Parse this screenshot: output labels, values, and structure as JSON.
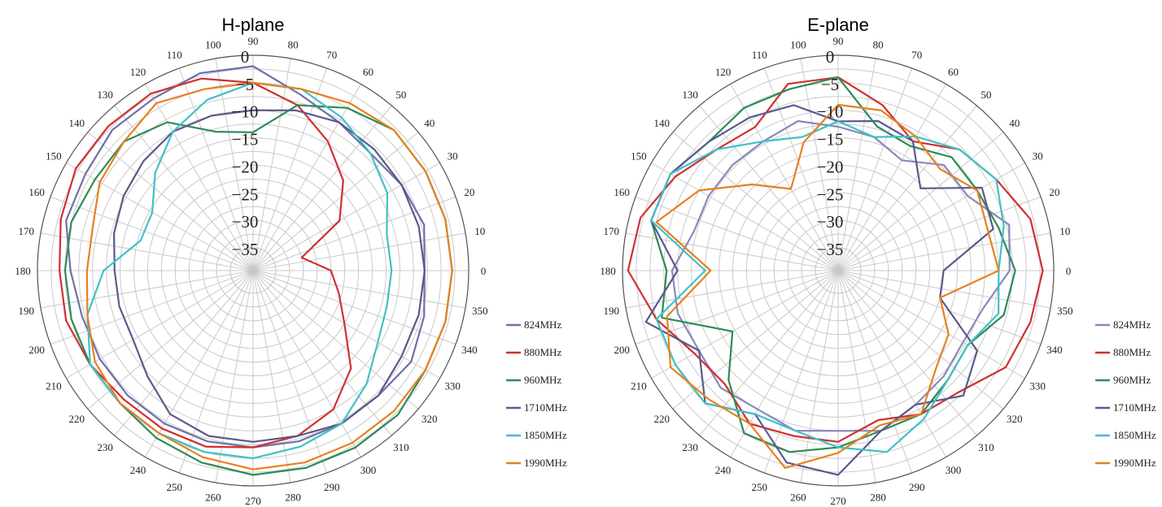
{
  "chart_data": [
    {
      "type": "polar",
      "title": "H-plane",
      "r_ticks": [
        0,
        -5,
        -10,
        -15,
        -20,
        -25,
        -30,
        -35
      ],
      "r_range": [
        -35,
        0
      ],
      "angle_ticks": [
        "0",
        "10",
        "20",
        "30",
        "40",
        "50",
        "60",
        "70",
        "80",
        "90",
        "100",
        "110",
        "120",
        "130",
        "140",
        "150",
        "160",
        "170",
        "180",
        "190",
        "200",
        "210",
        "220",
        "230",
        "240",
        "250",
        "260",
        "270",
        "280",
        "290",
        "300",
        "310",
        "320",
        "330",
        "340",
        "350"
      ],
      "legend_position": "right",
      "angles": [
        0,
        15,
        30,
        45,
        60,
        75,
        90,
        105,
        120,
        135,
        150,
        165,
        180,
        195,
        210,
        225,
        240,
        255,
        270,
        285,
        300,
        315,
        330,
        345
      ],
      "series": [
        {
          "name": "824MHz",
          "color": "#7070a8",
          "values": [
            -8,
            -7,
            -8,
            -9,
            -8,
            -6,
            -2,
            -2,
            -3,
            -3,
            -4,
            -4,
            -6,
            -7,
            -7,
            -7,
            -7,
            -7,
            -7,
            -7,
            -7,
            -7,
            -6,
            -7
          ]
        },
        {
          "name": "880MHz",
          "color": "#d03030",
          "values": [
            -25,
            -30,
            -21,
            -16,
            -12,
            -8,
            -5,
            -3,
            -2,
            -2,
            -2,
            -3,
            -4,
            -4,
            -5,
            -6,
            -6,
            -6,
            -7,
            -8,
            -10,
            -14,
            -20,
            -23
          ]
        },
        {
          "name": "960MHz",
          "color": "#2e8b57",
          "values": [
            -3,
            -3,
            -3,
            -3,
            -5,
            -8,
            -14,
            -13,
            -8,
            -6,
            -6,
            -5,
            -5,
            -5,
            -5,
            -5,
            -4,
            -3,
            -2,
            -2,
            -2,
            -2,
            -3,
            -3
          ]
        },
        {
          "name": "1710MHz",
          "color": "#5a5a8c",
          "values": [
            -8,
            -8,
            -8,
            -8,
            -8,
            -9,
            -10,
            -10,
            -10,
            -11,
            -12,
            -13,
            -14,
            -14,
            -14,
            -12,
            -9,
            -8,
            -8,
            -8,
            -7,
            -7,
            -8,
            -8
          ]
        },
        {
          "name": "1850MHz",
          "color": "#40c0c8",
          "values": [
            -14,
            -14,
            -11,
            -9,
            -7,
            -5,
            -5,
            -7,
            -10,
            -14,
            -18,
            -18,
            -12,
            -8,
            -5,
            -5,
            -5,
            -5,
            -5,
            -6,
            -7,
            -10,
            -13,
            -14
          ]
        },
        {
          "name": "1990MHz",
          "color": "#e88020",
          "values": [
            -3,
            -3,
            -3,
            -3,
            -4,
            -5,
            -5,
            -5,
            -4,
            -6,
            -7,
            -9,
            -9,
            -8,
            -6,
            -5,
            -5,
            -4,
            -3,
            -3,
            -3,
            -3,
            -3,
            -3
          ]
        }
      ]
    },
    {
      "type": "polar",
      "title": "E-plane",
      "r_ticks": [
        0,
        -5,
        -10,
        -15,
        -20,
        -25,
        -30,
        -35
      ],
      "r_range": [
        -35,
        0
      ],
      "angle_ticks": [
        "0",
        "10",
        "20",
        "30",
        "40",
        "50",
        "60",
        "70",
        "80",
        "90",
        "100",
        "110",
        "120",
        "130",
        "140",
        "150",
        "160",
        "170",
        "180",
        "190",
        "200",
        "210",
        "220",
        "230",
        "240",
        "250",
        "260",
        "270",
        "280",
        "290",
        "300",
        "310",
        "320",
        "330",
        "340",
        "350"
      ],
      "legend_position": "right",
      "angles": [
        0,
        15,
        30,
        45,
        60,
        75,
        90,
        105,
        120,
        135,
        150,
        165,
        180,
        195,
        210,
        225,
        240,
        255,
        270,
        285,
        300,
        315,
        330,
        345
      ],
      "series": [
        {
          "name": "824MHz",
          "color": "#8888bb",
          "values": [
            -8,
            -7,
            -12,
            -12,
            -16,
            -14,
            -13,
            -11,
            -12,
            -12,
            -12,
            -12,
            -9,
            -9,
            -10,
            -9,
            -10,
            -9,
            -10,
            -9,
            -11,
            -12,
            -13,
            -12
          ]
        },
        {
          "name": "880MHz",
          "color": "#d03030",
          "values": [
            -2,
            -3,
            -6,
            -8,
            -12,
            -8,
            -4,
            -4,
            -9,
            -8,
            -5,
            -2,
            -1,
            -5,
            -9,
            -10,
            -7,
            -8,
            -8,
            -11,
            -9,
            -8,
            -4,
            -3
          ]
        },
        {
          "name": "960MHz",
          "color": "#2e8b57",
          "values": [
            -7,
            -9,
            -10,
            -10,
            -13,
            -12,
            -4,
            -5,
            -5,
            -6,
            -4,
            -4,
            -8,
            -6,
            -17,
            -11,
            -5,
            -5,
            -7,
            -9,
            -9,
            -11,
            -12,
            -8
          ]
        },
        {
          "name": "1710MHz",
          "color": "#5a5a8c",
          "values": [
            -20,
            -10,
            -9,
            -18,
            -12,
            -11,
            -12,
            -8,
            -7,
            -6,
            -4,
            -4,
            -10,
            -3,
            -10,
            -5,
            -9,
            -3,
            -2,
            -9,
            -11,
            -7,
            -10,
            -20
          ]
        },
        {
          "name": "1850MHz",
          "color": "#40c0c8",
          "values": [
            -10,
            -8,
            -6,
            -8,
            -11,
            -14,
            -12,
            -14,
            -12,
            -8,
            -4,
            -4,
            -15,
            -5,
            -5,
            -5,
            -9,
            -9,
            -7,
            -5,
            -8,
            -11,
            -12,
            -9
          ]
        },
        {
          "name": "1990MHz",
          "color": "#e88020",
          "values": [
            -10,
            -11,
            -10,
            -13,
            -11,
            -9,
            -9,
            -15,
            -22,
            -17,
            -10,
            -5,
            -16,
            -7,
            -4,
            -6,
            -7,
            -2,
            -6,
            -10,
            -9,
            -14,
            -16,
            -20
          ]
        }
      ]
    }
  ]
}
